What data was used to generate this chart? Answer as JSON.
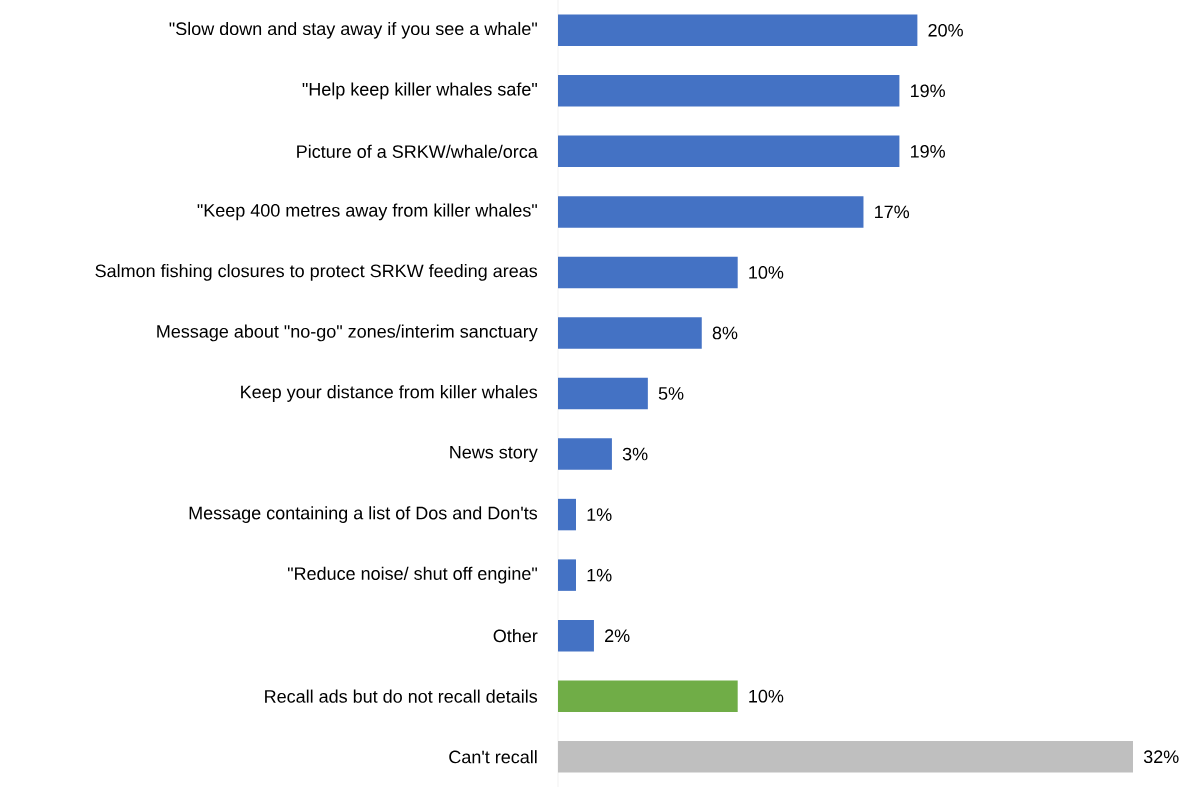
{
  "chart_data": {
    "type": "bar",
    "orientation": "horizontal",
    "categories": [
      "\"Slow down and stay away if you see a whale\"",
      "\"Help keep killer whales safe\"",
      "Picture of a SRKW/whale/orca",
      "\"Keep 400 metres away from killer whales\"",
      "Salmon fishing closures to protect SRKW feeding areas",
      "Message about \"no-go\" zones/interim sanctuary",
      "Keep your distance from killer whales",
      "News story",
      "Message containing a list of Dos and Don'ts",
      "\"Reduce noise/ shut off engine\"",
      "Other",
      "Recall ads but do not recall details",
      "Can't recall"
    ],
    "values": [
      20,
      19,
      19,
      17,
      10,
      8,
      5,
      3,
      1,
      1,
      2,
      10,
      32
    ],
    "value_labels": [
      "20%",
      "19%",
      "19%",
      "17%",
      "10%",
      "8%",
      "5%",
      "3%",
      "1%",
      "1%",
      "2%",
      "10%",
      "32%"
    ],
    "colors": [
      "#4472c4",
      "#4472c4",
      "#4472c4",
      "#4472c4",
      "#4472c4",
      "#4472c4",
      "#4472c4",
      "#4472c4",
      "#4472c4",
      "#4472c4",
      "#4472c4",
      "#70ad47",
      "#bfbfbf"
    ]
  }
}
